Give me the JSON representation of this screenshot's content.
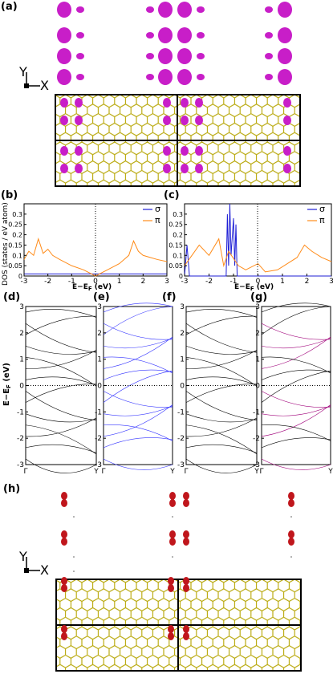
{
  "panels": {
    "a": "(a)",
    "b": "(b)",
    "c": "(c)",
    "d": "(d)",
    "e": "(e)",
    "f": "(f)",
    "g": "(g)",
    "h": "(h)"
  },
  "axes_glyphs": {
    "y": "Y",
    "x": "X"
  },
  "colors": {
    "sigma": "#1f1fd6",
    "pi": "#ff8c1a",
    "lattice": "#b5a400",
    "orbital_a": "#c81ec8",
    "orbital_h": "#c0161c",
    "bands_g": "#a0007a",
    "bands_e": "#3333ff"
  },
  "chart_data": [
    {
      "panel": "(b)",
      "type": "line",
      "ylabel": "DOS (states / eV atom)",
      "xlabel": "E−E_F (eV)",
      "xlim": [
        -3,
        3
      ],
      "ylim": [
        0,
        0.35
      ],
      "xticks": [
        "-3",
        "-2",
        "-1",
        "0",
        "1",
        "2",
        "3"
      ],
      "yticks": [
        "0",
        "0.05",
        "0.1",
        "0.15",
        "0.2",
        "0.25",
        "0.3"
      ],
      "legend": [
        "σ",
        "π"
      ],
      "series": [
        {
          "name": "σ",
          "values": [
            [
              -3,
              0.01
            ],
            [
              0,
              0.01
            ],
            [
              3,
              0.01
            ]
          ]
        },
        {
          "name": "π",
          "values": [
            [
              -3,
              0.08
            ],
            [
              -2.8,
              0.12
            ],
            [
              -2.6,
              0.1
            ],
            [
              -2.4,
              0.18
            ],
            [
              -2.2,
              0.11
            ],
            [
              -2.0,
              0.13
            ],
            [
              -1.8,
              0.1
            ],
            [
              -1.5,
              0.08
            ],
            [
              -1.0,
              0.05
            ],
            [
              -0.5,
              0.03
            ],
            [
              0,
              0.0
            ],
            [
              0.5,
              0.03
            ],
            [
              1.0,
              0.06
            ],
            [
              1.4,
              0.1
            ],
            [
              1.6,
              0.17
            ],
            [
              1.8,
              0.12
            ],
            [
              2.0,
              0.1
            ],
            [
              2.3,
              0.09
            ],
            [
              2.6,
              0.08
            ],
            [
              3.0,
              0.07
            ]
          ]
        }
      ]
    },
    {
      "panel": "(c)",
      "type": "line",
      "xlabel": "E−E_F (eV)",
      "xlim": [
        -3,
        3
      ],
      "ylim": [
        0,
        0.35
      ],
      "xticks": [
        "-3",
        "-2",
        "-1",
        "0",
        "1",
        "2",
        "3"
      ],
      "yticks": [
        "0",
        "0.05",
        "0.1",
        "0.15",
        "0.2",
        "0.25",
        "0.3"
      ],
      "legend": [
        "σ",
        "π"
      ],
      "series": [
        {
          "name": "σ",
          "values": [
            [
              -3,
              0.0
            ],
            [
              -2.9,
              0.15
            ],
            [
              -2.8,
              0.0
            ],
            [
              -1.3,
              0.0
            ],
            [
              -1.25,
              0.3
            ],
            [
              -1.2,
              0.05
            ],
            [
              -1.15,
              0.35
            ],
            [
              -1.1,
              0.1
            ],
            [
              -1.0,
              0.28
            ],
            [
              -0.95,
              0.05
            ],
            [
              -0.9,
              0.25
            ],
            [
              -0.85,
              0.0
            ],
            [
              3.0,
              0.0
            ]
          ]
        },
        {
          "name": "π",
          "values": [
            [
              -3,
              0.05
            ],
            [
              -2.7,
              0.1
            ],
            [
              -2.4,
              0.15
            ],
            [
              -2.0,
              0.1
            ],
            [
              -1.6,
              0.18
            ],
            [
              -1.4,
              0.05
            ],
            [
              -1.2,
              0.12
            ],
            [
              -0.8,
              0.05
            ],
            [
              -0.5,
              0.03
            ],
            [
              0,
              0.06
            ],
            [
              0.3,
              0.02
            ],
            [
              0.8,
              0.03
            ],
            [
              1.2,
              0.06
            ],
            [
              1.6,
              0.09
            ],
            [
              1.9,
              0.15
            ],
            [
              2.2,
              0.12
            ],
            [
              2.6,
              0.09
            ],
            [
              3.0,
              0.07
            ]
          ]
        }
      ]
    },
    {
      "panel": "(d)-(g)",
      "type": "line",
      "ylabel": "E−E_F (eV)",
      "ylim": [
        -3,
        3
      ],
      "yticks": [
        "-3",
        "-2",
        "-1",
        "0",
        "1",
        "2",
        "3"
      ],
      "xticks": [
        "Γ",
        "Y"
      ]
    }
  ]
}
